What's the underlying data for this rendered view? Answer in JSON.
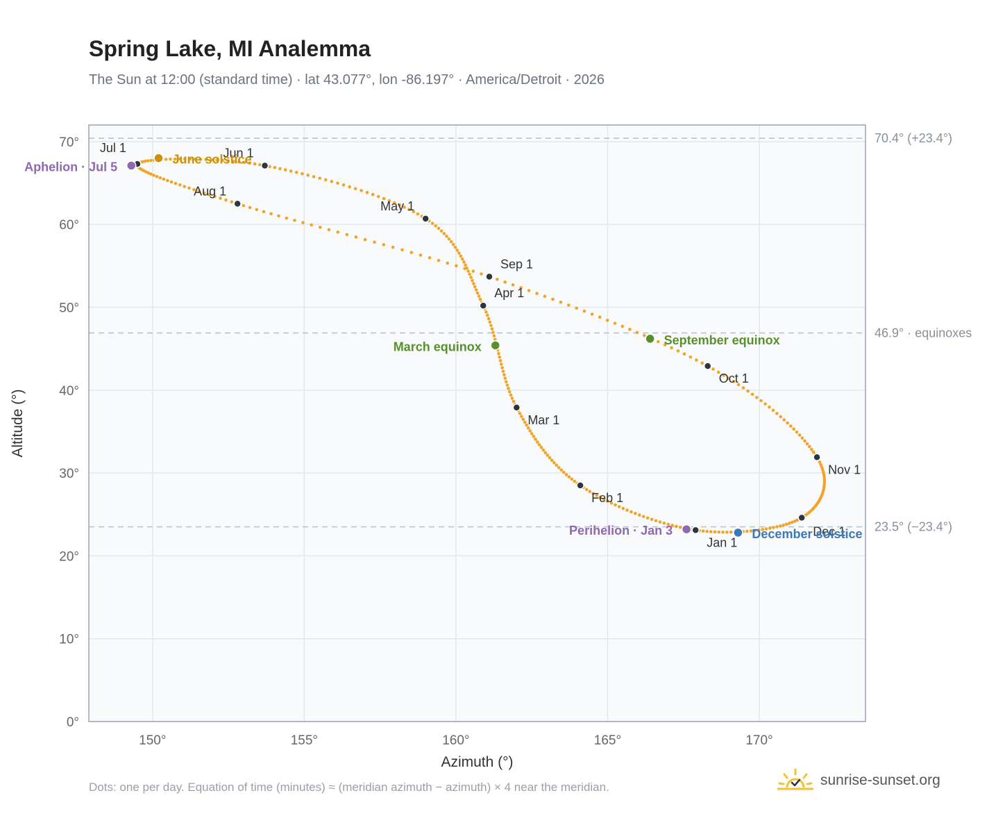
{
  "title": "Spring Lake, MI Analemma",
  "subtitle": "The Sun at 12:00 (standard time) · lat 43.077°, lon -86.197° · America/Detroit · 2026",
  "footnote": "Dots: one per day. Equation of time (minutes) ≈ (meridian azimuth − azimuth) × 4 near the meridian.",
  "brand": {
    "text": "sunrise-sunset.org",
    "icon": "sunrise-check-icon"
  },
  "colors": {
    "curve": "#f0a52a",
    "month_dot": "#2e3440",
    "equinox": "#5a8f2e",
    "solstice_june": "#c9920a",
    "solstice_dec": "#3a78b8",
    "apsis": "#8e68b0",
    "refline": "#b8c2d0",
    "plot_bg": "#f8fafc",
    "grid": "#e2e8ee",
    "frame": "#9aa3b0"
  },
  "chart_data": {
    "type": "scatter",
    "title": "Spring Lake, MI Analemma",
    "xlabel": "Azimuth (°)",
    "ylabel": "Altitude (°)",
    "xlim": [
      147.9,
      173.5
    ],
    "ylim": [
      0,
      72
    ],
    "x_ticks": [
      "150°",
      "155°",
      "160°",
      "165°",
      "170°"
    ],
    "x_tick_values": [
      150,
      155,
      160,
      165,
      170
    ],
    "y_ticks": [
      "0°",
      "10°",
      "20°",
      "30°",
      "40°",
      "50°",
      "60°",
      "70°"
    ],
    "y_tick_values": [
      0,
      10,
      20,
      30,
      40,
      50,
      60,
      70
    ],
    "grid": true,
    "reference_lines": [
      {
        "value": 70.4,
        "label": "70.4° (+23.4°)"
      },
      {
        "value": 46.9,
        "label": "46.9° · equinoxes"
      },
      {
        "value": 23.5,
        "label": "23.5° (−23.4°)"
      }
    ],
    "month_points": [
      {
        "label": "Jan 1",
        "az": 167.9,
        "alt": 23.1
      },
      {
        "label": "Feb 1",
        "az": 164.1,
        "alt": 28.5
      },
      {
        "label": "Mar 1",
        "az": 162.0,
        "alt": 37.9
      },
      {
        "label": "Apr 1",
        "az": 160.9,
        "alt": 50.2
      },
      {
        "label": "May 1",
        "az": 159.0,
        "alt": 60.7
      },
      {
        "label": "Jun 1",
        "az": 153.7,
        "alt": 67.1
      },
      {
        "label": "Jul 1",
        "az": 149.5,
        "alt": 67.3
      },
      {
        "label": "Aug 1",
        "az": 152.8,
        "alt": 62.5
      },
      {
        "label": "Sep 1",
        "az": 161.1,
        "alt": 53.7
      },
      {
        "label": "Oct 1",
        "az": 168.3,
        "alt": 42.9
      },
      {
        "label": "Nov 1",
        "az": 171.9,
        "alt": 31.9
      },
      {
        "label": "Dec 1",
        "az": 171.4,
        "alt": 24.6
      }
    ],
    "events": [
      {
        "label": "March equinox",
        "az": 161.3,
        "alt": 45.4,
        "color": "#5a8f2e"
      },
      {
        "label": "June solstice",
        "az": 150.2,
        "alt": 68.0,
        "color": "#c9920a"
      },
      {
        "label": "September equinox",
        "az": 166.4,
        "alt": 46.2,
        "color": "#5a8f2e"
      },
      {
        "label": "December solstice",
        "az": 169.3,
        "alt": 22.8,
        "color": "#3a78b8"
      },
      {
        "label": "Perihelion · Jan 3",
        "az": 167.6,
        "alt": 23.2,
        "color": "#8e68b0"
      },
      {
        "label": "Aphelion · Jul 5",
        "az": 149.3,
        "alt": 67.1,
        "color": "#8e68b0"
      }
    ],
    "daily_dots_per_year": 365
  }
}
